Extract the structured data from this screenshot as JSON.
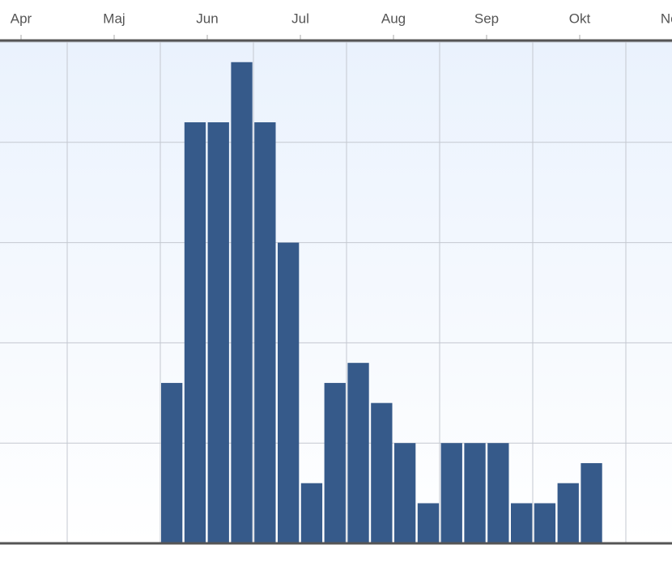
{
  "chart_data": {
    "type": "bar",
    "months": [
      "Apr",
      "Maj",
      "Jun",
      "Jul",
      "Aug",
      "Sep",
      "Okt",
      "Nov"
    ],
    "categories": [
      null,
      null,
      null,
      null,
      null,
      null,
      null,
      null,
      null,
      null,
      null,
      null,
      null,
      null,
      null,
      null,
      null,
      null,
      null
    ],
    "values": [
      8,
      21,
      21,
      24,
      21,
      15,
      3,
      8,
      9,
      7,
      5,
      2,
      5,
      5,
      5,
      2,
      2,
      3,
      4
    ],
    "color": "#365a8a",
    "ylim": [
      0,
      25
    ],
    "yticks": [
      0,
      5,
      10,
      15,
      20,
      25
    ],
    "grid": true
  }
}
